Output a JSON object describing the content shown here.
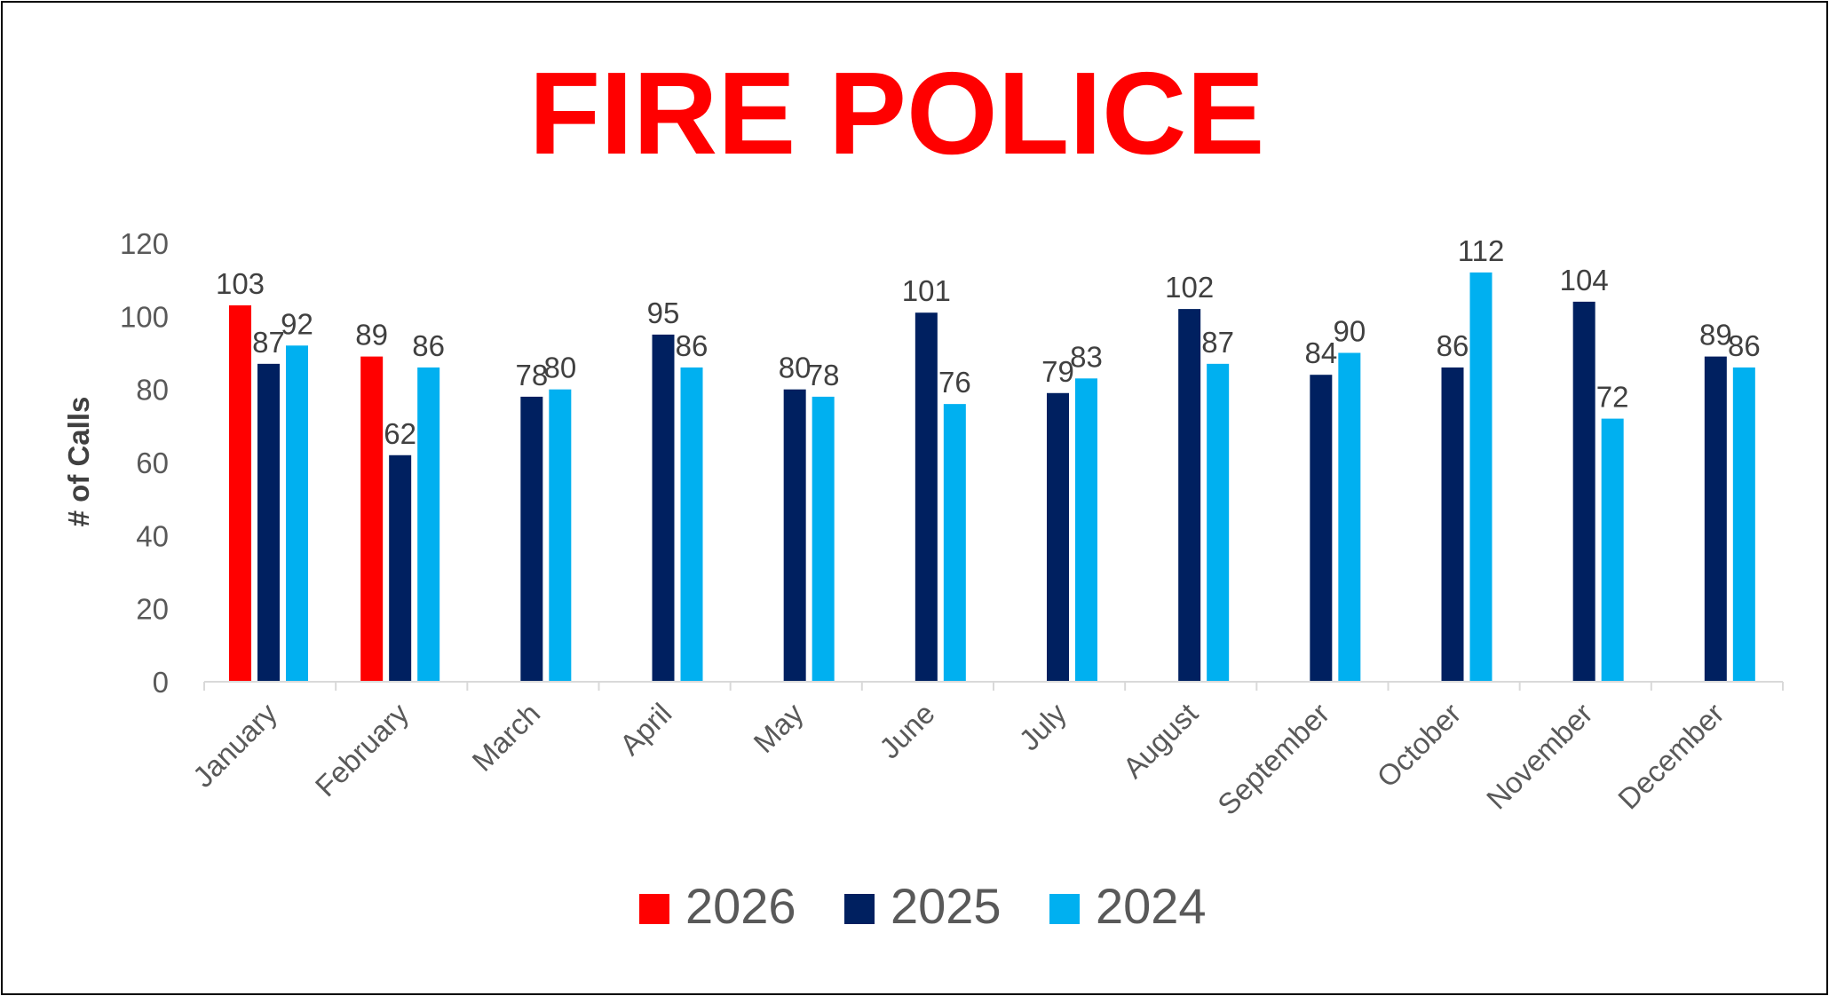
{
  "chart_data": {
    "type": "bar",
    "title": "FIRE POLICE",
    "xlabel": "",
    "ylabel": "# of Calls",
    "ylim": [
      0,
      120
    ],
    "yticks": [
      0,
      20,
      40,
      60,
      80,
      100,
      120
    ],
    "grid": false,
    "legend_position": "bottom",
    "categories": [
      "January",
      "February",
      "March",
      "April",
      "May",
      "June",
      "July",
      "August",
      "September",
      "October",
      "November",
      "December"
    ],
    "series": [
      {
        "name": "2026",
        "color": "#ff0000",
        "values": [
          103,
          89,
          null,
          null,
          null,
          null,
          null,
          null,
          null,
          null,
          null,
          null
        ]
      },
      {
        "name": "2025",
        "color": "#002060",
        "values": [
          87,
          62,
          78,
          95,
          80,
          101,
          79,
          102,
          84,
          86,
          104,
          89
        ]
      },
      {
        "name": "2024",
        "color": "#00b0f0",
        "values": [
          92,
          86,
          80,
          86,
          78,
          76,
          83,
          87,
          90,
          112,
          72,
          86
        ]
      }
    ]
  },
  "colors": {
    "title": "#ff0000",
    "axis": "#d9d9d9",
    "tick_text": "#595959",
    "label_text": "#404040"
  }
}
